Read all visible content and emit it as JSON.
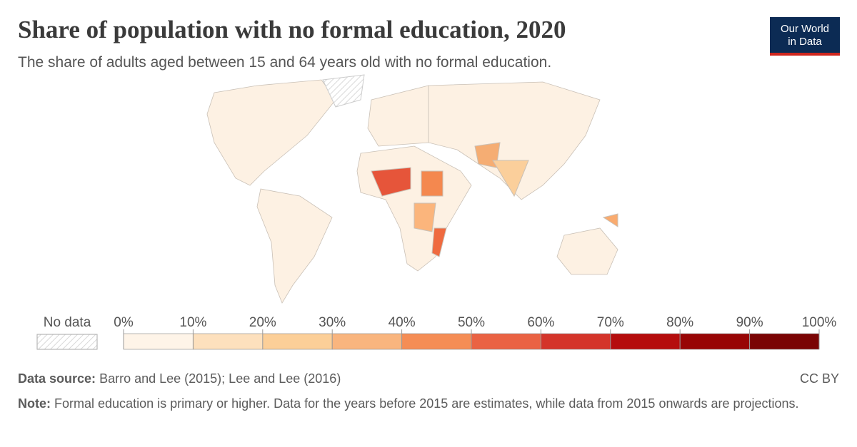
{
  "chart_data": {
    "type": "map",
    "title": "Share of population with no formal education, 2020",
    "subtitle": "The share of adults aged between 15 and 64 years old with no formal education.",
    "logo": [
      "Our World",
      "in Data"
    ],
    "legend": {
      "no_data_label": "No data",
      "ticks": [
        {
          "value": 0,
          "label": "0%"
        },
        {
          "value": 10,
          "label": "10%"
        },
        {
          "value": 20,
          "label": "20%"
        },
        {
          "value": 30,
          "label": "30%"
        },
        {
          "value": 40,
          "label": "40%"
        },
        {
          "value": 50,
          "label": "50%"
        },
        {
          "value": 60,
          "label": "60%"
        },
        {
          "value": 70,
          "label": "70%"
        },
        {
          "value": 80,
          "label": "80%"
        },
        {
          "value": 90,
          "label": "90%"
        },
        {
          "value": 100,
          "label": "100%"
        }
      ],
      "colors": [
        "#fef4e8",
        "#fde0bd",
        "#fccf98",
        "#f9b57e",
        "#f58d55",
        "#ea6243",
        "#d4342a",
        "#b50d0d",
        "#980505",
        "#7a0404"
      ]
    },
    "source_label": "Data source:",
    "source": "Barro and Lee (2015); Lee and Lee (2016)",
    "license": "CC BY",
    "note_label": "Note:",
    "note": "Formal education is primary or higher. Data for the years before 2015 are estimates, while data from 2015 onwards are projections."
  }
}
